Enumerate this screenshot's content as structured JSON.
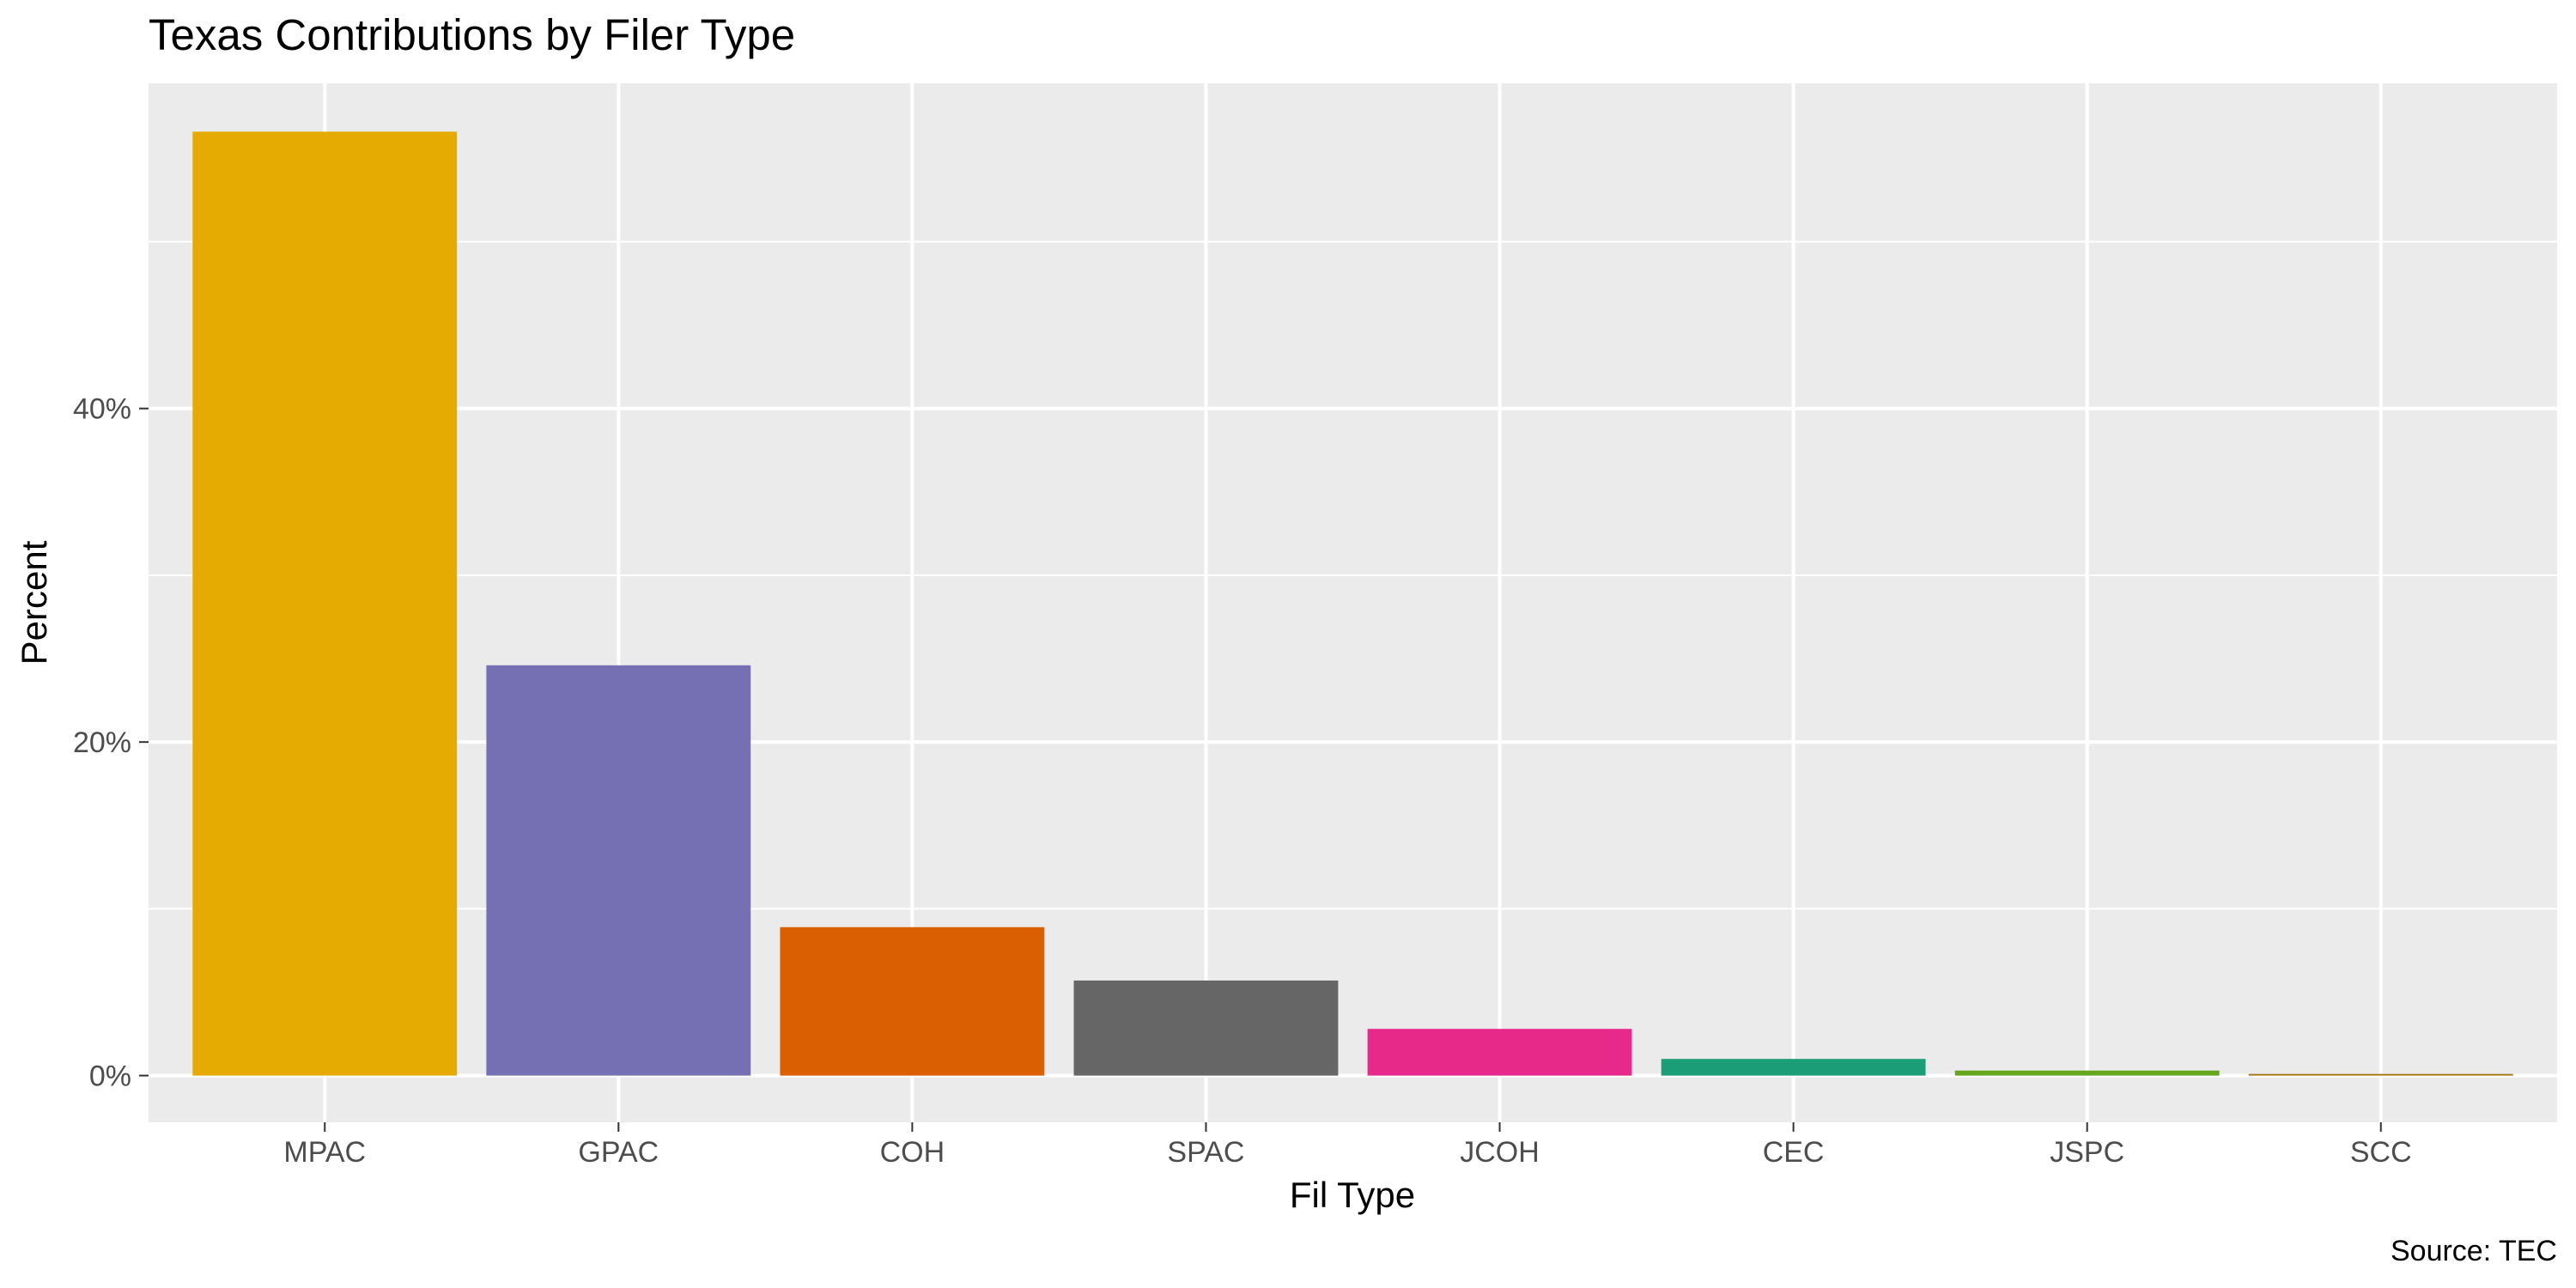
{
  "chart_data": {
    "type": "bar",
    "title": "Texas Contributions by Filer Type",
    "xlabel": "Fil Type",
    "ylabel": "Percent",
    "caption": "Source: TEC",
    "categories": [
      "MPAC",
      "GPAC",
      "COH",
      "SPAC",
      "JCOH",
      "CEC",
      "JSPC",
      "SCC"
    ],
    "values": [
      56.6,
      24.6,
      8.9,
      5.7,
      2.8,
      1.0,
      0.3,
      0.1
    ],
    "colors": [
      "#E6AB02",
      "#7570B3",
      "#D95F02",
      "#666666",
      "#E7298A",
      "#1B9E77",
      "#66A61E",
      "#A6761D"
    ],
    "ylim": [
      -2.8,
      59.5
    ],
    "y_ticks": [
      0,
      20,
      40
    ],
    "y_tick_labels": [
      "0%",
      "20%",
      "40%"
    ],
    "y_minor_ticks": [
      10,
      30,
      50
    ],
    "grid": true,
    "legend": "none",
    "panel_color": "#EBEBEB",
    "grid_color": "#FFFFFF"
  }
}
